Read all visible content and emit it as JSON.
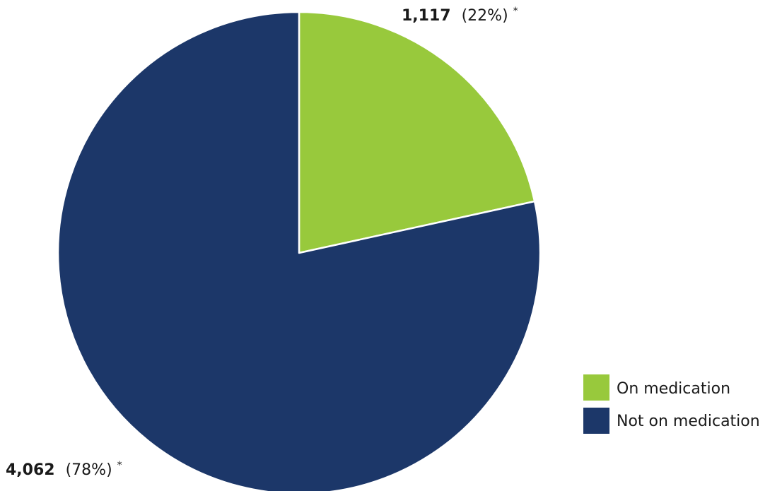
{
  "chart_data": {
    "type": "pie",
    "title": "",
    "start_angle_deg": 0,
    "direction": "clockwise",
    "slices": [
      {
        "name": "On medication",
        "value": 1117,
        "value_label": "1,117",
        "percent_label": "(22%)",
        "note": "*",
        "color": "#98c93c"
      },
      {
        "name": "Not on medication",
        "value": 4062,
        "value_label": "4,062",
        "percent_label": "(78%)",
        "note": "*",
        "color": "#1c3769"
      }
    ],
    "legend": {
      "position": "bottom-right",
      "items": [
        {
          "label": "On medication",
          "color": "#98c93c"
        },
        {
          "label": "Not on medication",
          "color": "#1c3769"
        }
      ]
    },
    "slice_border_color": "#ffffff"
  }
}
